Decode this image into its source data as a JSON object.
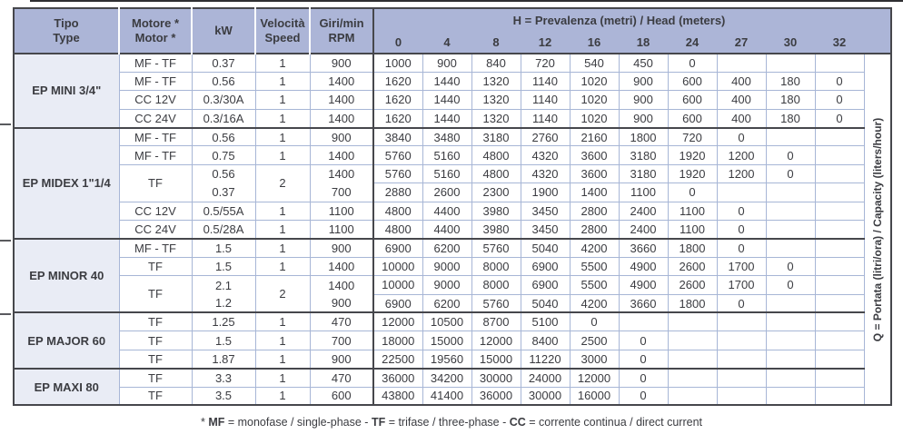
{
  "colors": {
    "header_bg": "#acb5d7",
    "section_bg": "#e9ecf5",
    "grid_light": "#a7b6d6",
    "grid_dark": "#46474c",
    "text": "#3b3c41"
  },
  "header": {
    "tipo": [
      "Tipo",
      "Type"
    ],
    "motore": [
      "Motore *",
      "Motor *"
    ],
    "kw": "kW",
    "velocita": [
      "Velocità",
      "Speed"
    ],
    "giri": [
      "Giri/min",
      "RPM"
    ],
    "head_title_bold": "H",
    "head_title_rest": " = Prevalenza (metri) / Head (meters)",
    "head_columns": [
      "0",
      "4",
      "8",
      "12",
      "16",
      "18",
      "24",
      "27",
      "30",
      "32"
    ]
  },
  "side_label": "Q = Portata (litri/ora) / Capacity (liters/hour)",
  "sections": [
    {
      "name": "EP MINI 3/4\"",
      "rows": [
        {
          "motor": "MF - TF",
          "kw": "0.37",
          "speed": "1",
          "rpm": "900",
          "values": [
            "1000",
            "900",
            "840",
            "720",
            "540",
            "450",
            "0",
            "",
            "",
            ""
          ]
        },
        {
          "motor": "MF - TF",
          "kw": "0.56",
          "speed": "1",
          "rpm": "1400",
          "values": [
            "1620",
            "1440",
            "1320",
            "1140",
            "1020",
            "900",
            "600",
            "400",
            "180",
            "0"
          ]
        },
        {
          "motor": "CC 12V",
          "kw": "0.3/30A",
          "speed": "1",
          "rpm": "1400",
          "values": [
            "1620",
            "1440",
            "1320",
            "1140",
            "1020",
            "900",
            "600",
            "400",
            "180",
            "0"
          ]
        },
        {
          "motor": "CC 24V",
          "kw": "0.3/16A",
          "speed": "1",
          "rpm": "1400",
          "values": [
            "1620",
            "1440",
            "1320",
            "1140",
            "1020",
            "900",
            "600",
            "400",
            "180",
            "0"
          ]
        }
      ]
    },
    {
      "name": "EP MIDEX 1\"1/4",
      "rows": [
        {
          "motor": "MF - TF",
          "kw": "0.56",
          "speed": "1",
          "rpm": "900",
          "values": [
            "3840",
            "3480",
            "3180",
            "2760",
            "2160",
            "1800",
            "720",
            "0",
            "",
            ""
          ]
        },
        {
          "motor": "MF - TF",
          "kw": "0.75",
          "speed": "1",
          "rpm": "1400",
          "values": [
            "5760",
            "5160",
            "4800",
            "4320",
            "3600",
            "3180",
            "1920",
            "1200",
            "0",
            ""
          ]
        },
        {
          "motor": "TF",
          "motor_rowspan": 2,
          "kw": "0.56",
          "kw_nb": true,
          "speed": "2",
          "speed_rowspan": 2,
          "rpm": "1400",
          "rpm_nb": true,
          "values": [
            "5760",
            "5160",
            "4800",
            "4320",
            "3600",
            "3180",
            "1920",
            "1200",
            "0",
            ""
          ]
        },
        {
          "cont": true,
          "kw": "0.37",
          "rpm": "700",
          "values": [
            "2880",
            "2600",
            "2300",
            "1900",
            "1400",
            "1100",
            "0",
            "",
            "",
            ""
          ]
        },
        {
          "motor": "CC 12V",
          "kw": "0.5/55A",
          "speed": "1",
          "rpm": "1100",
          "values": [
            "4800",
            "4400",
            "3980",
            "3450",
            "2800",
            "2400",
            "1100",
            "0",
            "",
            ""
          ]
        },
        {
          "motor": "CC 24V",
          "kw": "0.5/28A",
          "speed": "1",
          "rpm": "1100",
          "values": [
            "4800",
            "4400",
            "3980",
            "3450",
            "2800",
            "2400",
            "1100",
            "0",
            "",
            ""
          ]
        }
      ]
    },
    {
      "name": "EP MINOR 40",
      "rows": [
        {
          "motor": "MF - TF",
          "kw": "1.5",
          "speed": "1",
          "rpm": "900",
          "values": [
            "6900",
            "6200",
            "5760",
            "5040",
            "4200",
            "3660",
            "1800",
            "0",
            "",
            ""
          ]
        },
        {
          "motor": "TF",
          "kw": "1.5",
          "speed": "1",
          "rpm": "1400",
          "values": [
            "10000",
            "9000",
            "8000",
            "6900",
            "5500",
            "4900",
            "2600",
            "1700",
            "0",
            ""
          ]
        },
        {
          "motor": "TF",
          "motor_rowspan": 2,
          "kw": "2.1",
          "kw_nb": true,
          "speed": "2",
          "speed_rowspan": 2,
          "rpm": "1400",
          "rpm_nb": true,
          "values": [
            "10000",
            "9000",
            "8000",
            "6900",
            "5500",
            "4900",
            "2600",
            "1700",
            "0",
            ""
          ]
        },
        {
          "cont": true,
          "kw": "1.2",
          "rpm": "900",
          "values": [
            "6900",
            "6200",
            "5760",
            "5040",
            "4200",
            "3660",
            "1800",
            "0",
            "",
            ""
          ]
        }
      ]
    },
    {
      "name": "EP MAJOR 60",
      "rows": [
        {
          "motor": "TF",
          "kw": "1.25",
          "speed": "1",
          "rpm": "470",
          "values": [
            "12000",
            "10500",
            "8700",
            "5100",
            "0",
            "",
            "",
            "",
            "",
            ""
          ]
        },
        {
          "motor": "TF",
          "kw": "1.5",
          "speed": "1",
          "rpm": "700",
          "values": [
            "18000",
            "15000",
            "12000",
            "8400",
            "2500",
            "0",
            "",
            "",
            "",
            ""
          ]
        },
        {
          "motor": "TF",
          "kw": "1.87",
          "speed": "1",
          "rpm": "900",
          "values": [
            "22500",
            "19560",
            "15000",
            "11220",
            "3000",
            "0",
            "",
            "",
            "",
            ""
          ]
        }
      ]
    },
    {
      "name": "EP MAXI 80",
      "rows": [
        {
          "motor": "TF",
          "kw": "3.3",
          "speed": "1",
          "rpm": "470",
          "values": [
            "36000",
            "34200",
            "30000",
            "24000",
            "12000",
            "0",
            "",
            "",
            "",
            ""
          ]
        },
        {
          "motor": "TF",
          "kw": "3.5",
          "speed": "1",
          "rpm": "600",
          "values": [
            "43800",
            "41400",
            "36000",
            "30000",
            "16000",
            "0",
            "",
            "",
            "",
            ""
          ]
        }
      ]
    }
  ],
  "footnote": {
    "segments": [
      {
        "text": "* ",
        "bold": false
      },
      {
        "text": "MF",
        "bold": true
      },
      {
        "text": " = monofase / single-phase - ",
        "bold": false
      },
      {
        "text": "TF",
        "bold": true
      },
      {
        "text": " = trifase / three-phase - ",
        "bold": false
      },
      {
        "text": "CC",
        "bold": true
      },
      {
        "text": " = corrente continua / direct current",
        "bold": false
      }
    ]
  }
}
